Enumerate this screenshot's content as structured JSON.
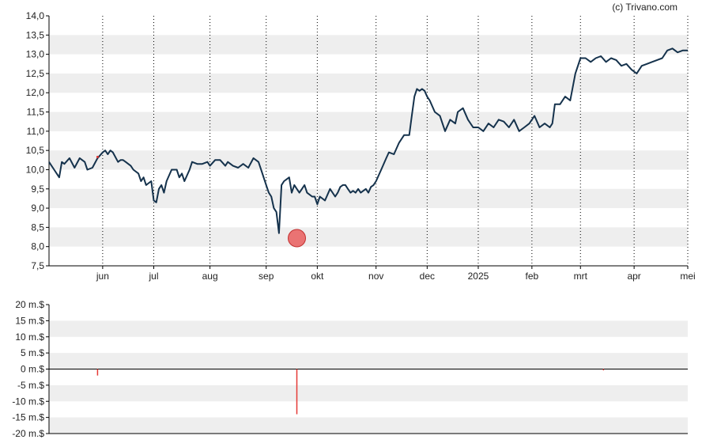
{
  "credit": "(c) Trivano.com",
  "colors": {
    "line": "#15324c",
    "band": "#eeeeee",
    "grid": "#000000",
    "marker": "#e84a4a",
    "volume": "#e53935"
  },
  "chart_data": [
    {
      "type": "line",
      "title": "",
      "xlabel": "",
      "ylabel": "",
      "ylim": [
        7.5,
        14.0
      ],
      "yticks": [
        7.5,
        8.0,
        8.5,
        9.0,
        9.5,
        10.0,
        10.5,
        11.0,
        11.5,
        12.0,
        12.5,
        13.0,
        13.5,
        14.0
      ],
      "ytick_labels": [
        "7,5",
        "8,0",
        "8,5",
        "9,0",
        "9,5",
        "10,0",
        "10,5",
        "11,0",
        "11,5",
        "12,0",
        "12,5",
        "13,0",
        "13,5",
        "14,0"
      ],
      "xlim": [
        0,
        250
      ],
      "xticks": [
        21,
        41,
        63,
        85,
        105,
        128,
        148,
        168,
        189,
        208,
        229,
        250
      ],
      "xtick_labels": [
        "jun",
        "jul",
        "aug",
        "sep",
        "okt",
        "nov",
        "dec",
        "2025",
        "feb",
        "mrt",
        "apr",
        "mei"
      ],
      "grid": "vertical dotted at month ticks, alternating horizontal bands",
      "legend": "none",
      "series": [
        {
          "x": [
            0,
            2,
            4,
            5,
            6,
            8,
            10,
            12,
            14,
            15,
            17,
            19,
            21,
            22,
            23,
            24,
            25,
            27,
            28,
            29,
            30,
            32,
            33,
            35,
            36,
            37,
            38,
            39,
            40,
            41,
            42,
            43,
            44,
            45,
            46,
            48,
            50,
            51,
            52,
            53,
            55,
            56,
            58,
            60,
            62,
            63,
            65,
            67,
            69,
            70,
            72,
            74,
            76,
            78,
            80,
            82,
            83,
            85,
            86,
            87,
            88,
            89,
            90,
            91,
            92,
            93,
            94,
            95,
            96,
            97,
            98,
            100,
            101,
            103,
            104,
            105,
            106,
            108,
            110,
            112,
            113,
            114,
            115,
            116,
            117,
            118,
            119,
            120,
            121,
            122,
            123,
            124,
            125,
            126,
            127,
            128,
            130,
            132,
            133,
            135,
            137,
            139,
            141,
            142,
            143,
            144,
            145,
            146,
            147,
            148,
            149,
            151,
            153,
            155,
            157,
            159,
            160,
            162,
            164,
            166,
            168,
            170,
            172,
            174,
            176,
            178,
            180,
            182,
            184,
            186,
            188,
            190,
            192,
            194,
            196,
            197,
            198,
            200,
            202,
            204,
            206,
            208,
            210,
            212,
            214,
            216,
            218,
            220,
            222,
            224,
            226,
            228,
            230,
            232,
            234,
            236,
            238,
            240,
            242,
            244,
            246,
            248,
            250
          ],
          "y": [
            10.2,
            10.0,
            9.8,
            10.2,
            10.15,
            10.3,
            10.05,
            10.3,
            10.2,
            10.0,
            10.05,
            10.3,
            10.45,
            10.5,
            10.4,
            10.5,
            10.45,
            10.2,
            10.25,
            10.25,
            10.2,
            10.1,
            10.0,
            9.9,
            9.7,
            9.8,
            9.6,
            9.65,
            9.7,
            9.2,
            9.15,
            9.5,
            9.6,
            9.4,
            9.7,
            10.0,
            10.0,
            9.8,
            9.9,
            9.7,
            10.0,
            10.2,
            10.15,
            10.15,
            10.2,
            10.1,
            10.25,
            10.25,
            10.1,
            10.2,
            10.1,
            10.05,
            10.15,
            10.05,
            10.3,
            10.2,
            10.0,
            9.6,
            9.4,
            9.3,
            9.0,
            8.9,
            8.35,
            9.6,
            9.7,
            9.75,
            9.8,
            9.4,
            9.6,
            9.5,
            9.4,
            9.6,
            9.4,
            9.3,
            9.3,
            9.1,
            9.3,
            9.2,
            9.5,
            9.3,
            9.4,
            9.55,
            9.6,
            9.6,
            9.5,
            9.4,
            9.45,
            9.4,
            9.5,
            9.4,
            9.45,
            9.5,
            9.4,
            9.55,
            9.6,
            9.7,
            10.0,
            10.3,
            10.45,
            10.4,
            10.7,
            10.9,
            10.9,
            11.4,
            11.9,
            12.1,
            12.05,
            12.1,
            12.05,
            11.9,
            11.8,
            11.5,
            11.4,
            11.0,
            11.3,
            11.2,
            11.5,
            11.6,
            11.3,
            11.1,
            11.1,
            11.0,
            11.2,
            11.1,
            11.3,
            11.25,
            11.1,
            11.3,
            11.0,
            11.1,
            11.2,
            11.4,
            11.1,
            11.2,
            11.1,
            11.2,
            11.7,
            11.7,
            11.9,
            11.8,
            12.5,
            12.9,
            12.9,
            12.8,
            12.9,
            12.95,
            12.8,
            12.9,
            12.85,
            12.7,
            12.75,
            12.6,
            12.5,
            12.7,
            12.75,
            12.8,
            12.85,
            12.9,
            13.1,
            13.15,
            13.05,
            13.1,
            13.1
          ]
        }
      ],
      "annotations": [
        {
          "type": "marker",
          "x": 97,
          "y": 8.22
        },
        {
          "type": "point",
          "x": 19,
          "y": 10.33
        }
      ]
    },
    {
      "type": "bar",
      "title": "",
      "xlabel": "",
      "ylabel": "",
      "ylim": [
        -20,
        20
      ],
      "yticks": [
        -20,
        -15,
        -10,
        -5,
        0,
        5,
        10,
        15,
        20
      ],
      "ytick_labels": [
        "-20 m.$",
        "-15 m.$",
        "-10 m.$",
        "-5 m.$",
        "0 m.$",
        "5 m.$",
        "10 m.$",
        "15 m.$",
        "20 m.$"
      ],
      "xlim": [
        0,
        250
      ],
      "legend": "none",
      "series": [
        {
          "x": [
            19,
            97,
            217
          ],
          "values": [
            -2.0,
            -14.0,
            -0.4
          ]
        }
      ]
    }
  ]
}
